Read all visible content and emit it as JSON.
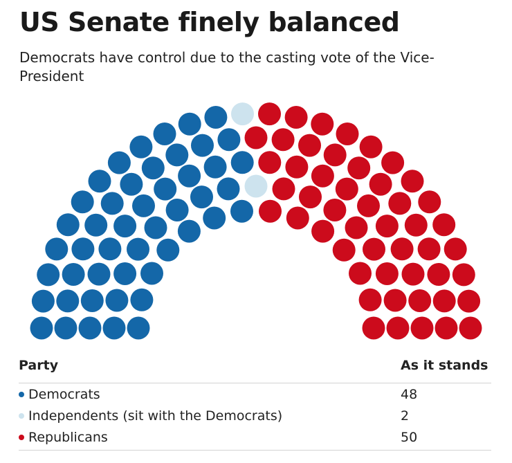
{
  "chart_data": {
    "type": "parliament",
    "title": "US Senate finely balanced",
    "subtitle": "Democrats have control due to the casting vote of the Vice-President",
    "total_seats": 100,
    "rows": 5,
    "series": [
      {
        "key": "democrats",
        "name": "Democrats",
        "value": 48,
        "color": "#1467a8"
      },
      {
        "key": "independents",
        "name": "Independents (sit with the Democrats)",
        "value": 2,
        "color": "#cde3ee"
      },
      {
        "key": "republicans",
        "name": "Republicans",
        "value": 50,
        "color": "#cc0b1c"
      }
    ]
  },
  "table": {
    "header_party": "Party",
    "header_value": "As it stands",
    "rows": [
      {
        "label": "Democrats",
        "value": "48",
        "color": "#1467a8"
      },
      {
        "label": "Independents (sit with the Democrats)",
        "value": "2",
        "color": "#cde3ee"
      },
      {
        "label": "Republicans",
        "value": "50",
        "color": "#cc0b1c"
      }
    ]
  }
}
